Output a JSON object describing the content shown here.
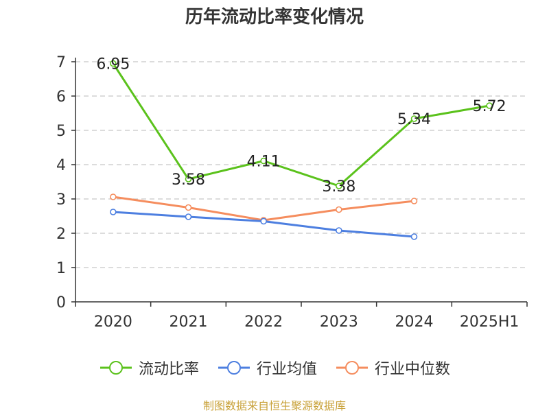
{
  "title": "历年流动比率变化情况",
  "source": "制图数据来自恒生聚源数据库",
  "colors": {
    "grid": "#c8c8c8",
    "axis": "#333333",
    "text": "#333333"
  },
  "chart_data": {
    "type": "line",
    "title": "历年流动比率变化情况",
    "categories": [
      "2020",
      "2021",
      "2022",
      "2023",
      "2024",
      "2025H1"
    ],
    "ylim": [
      0,
      7
    ],
    "yticks": [
      0,
      1,
      2,
      3,
      4,
      5,
      6,
      7
    ],
    "grid": true,
    "legend_position": "bottom",
    "series": [
      {
        "name": "流动比率",
        "color": "#5bc21c",
        "values": [
          6.95,
          3.58,
          4.11,
          3.38,
          5.34,
          5.72
        ],
        "labels": [
          "6.95",
          "3.58",
          "4.11",
          "3.38",
          "5.34",
          "5.72"
        ]
      },
      {
        "name": "行业均值",
        "color": "#4d7fe0",
        "values": [
          2.62,
          2.48,
          2.35,
          2.08,
          1.9,
          null
        ]
      },
      {
        "name": "行业中位数",
        "color": "#f58d5e",
        "values": [
          3.06,
          2.75,
          2.38,
          2.69,
          2.94,
          null
        ]
      }
    ]
  }
}
